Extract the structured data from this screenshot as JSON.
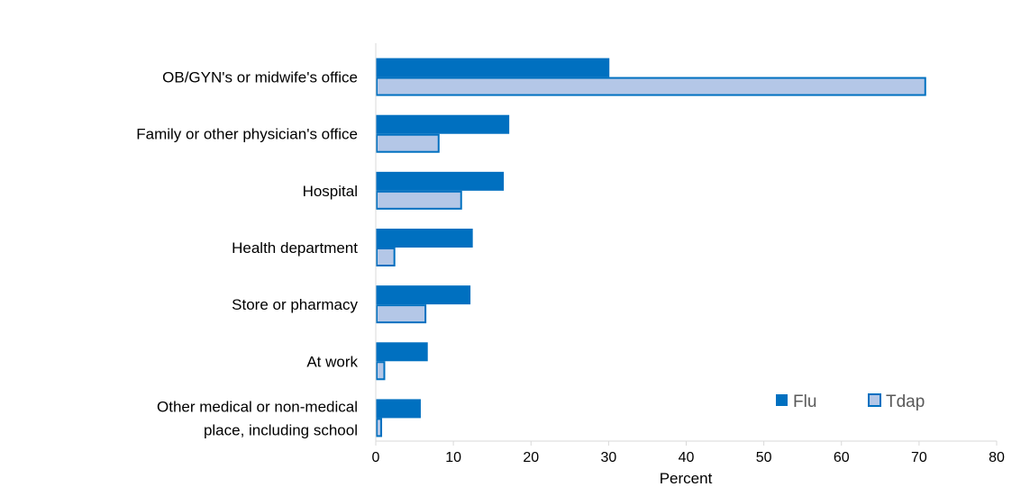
{
  "chart_data": {
    "type": "bar",
    "orientation": "horizontal",
    "title": "",
    "xlabel": "Percent",
    "ylabel": "",
    "xlim": [
      0,
      80
    ],
    "xticks": [
      "0",
      "10",
      "20",
      "30",
      "40",
      "50",
      "60",
      "70",
      "80"
    ],
    "grid": false,
    "legend_position": "bottom-right",
    "categories": [
      [
        "OB/GYN's or midwife's office"
      ],
      [
        "Family or other physician's office"
      ],
      [
        "Hospital"
      ],
      [
        "Health department"
      ],
      [
        "Store or pharmacy"
      ],
      [
        "At work"
      ],
      [
        "Other medical or non-medical",
        "place, including school"
      ]
    ],
    "series": [
      {
        "name": "Flu",
        "color": "#0070C0",
        "values": [
          30.1,
          17.2,
          16.5,
          12.5,
          12.2,
          6.7,
          5.8
        ]
      },
      {
        "name": "Tdap",
        "color": "#B4C7E7",
        "stroke": "#0070C0",
        "values": [
          70.8,
          8.1,
          11.0,
          2.4,
          6.4,
          1.1,
          0.7
        ]
      }
    ]
  }
}
